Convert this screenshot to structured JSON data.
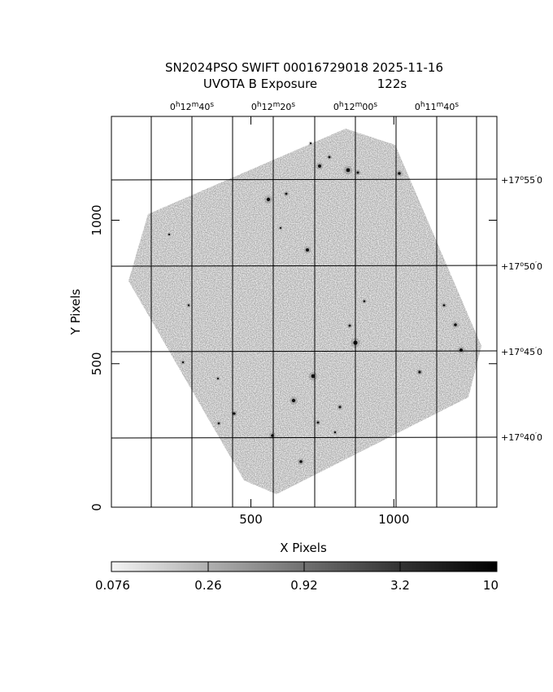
{
  "title": {
    "line1": "SN2024PSO SWIFT 00016729018 2025-11-16",
    "line2_label": "UVOTA B Exposure",
    "line2_value": "122s"
  },
  "axes": {
    "xlabel": "X Pixels",
    "ylabel": "Y Pixels",
    "x_ticks": [
      {
        "value": 500,
        "label": "500"
      },
      {
        "value": 1000,
        "label": "1000"
      }
    ],
    "y_ticks": [
      {
        "value": 0,
        "label": "0"
      },
      {
        "value": 500,
        "label": "500"
      },
      {
        "value": 1000,
        "label": "1000"
      }
    ]
  },
  "ra_labels": [
    {
      "h": "0",
      "m": "12",
      "s": "40"
    },
    {
      "h": "0",
      "m": "12",
      "s": "20"
    },
    {
      "h": "0",
      "m": "12",
      "s": "00"
    },
    {
      "h": "0",
      "m": "11",
      "s": "40"
    }
  ],
  "dec_labels": [
    {
      "d": "+17",
      "m": "55",
      "s": "0"
    },
    {
      "d": "+17",
      "m": "50",
      "s": "0"
    },
    {
      "d": "+17",
      "m": "45",
      "s": "0"
    },
    {
      "d": "+17",
      "m": "40",
      "s": "0"
    }
  ],
  "colorbar": {
    "labels": [
      "0.076",
      "0.26",
      "0.92",
      "3.2",
      "10"
    ]
  },
  "colors": {
    "image_gray": "#a8a8a8",
    "grid": "#000000"
  }
}
